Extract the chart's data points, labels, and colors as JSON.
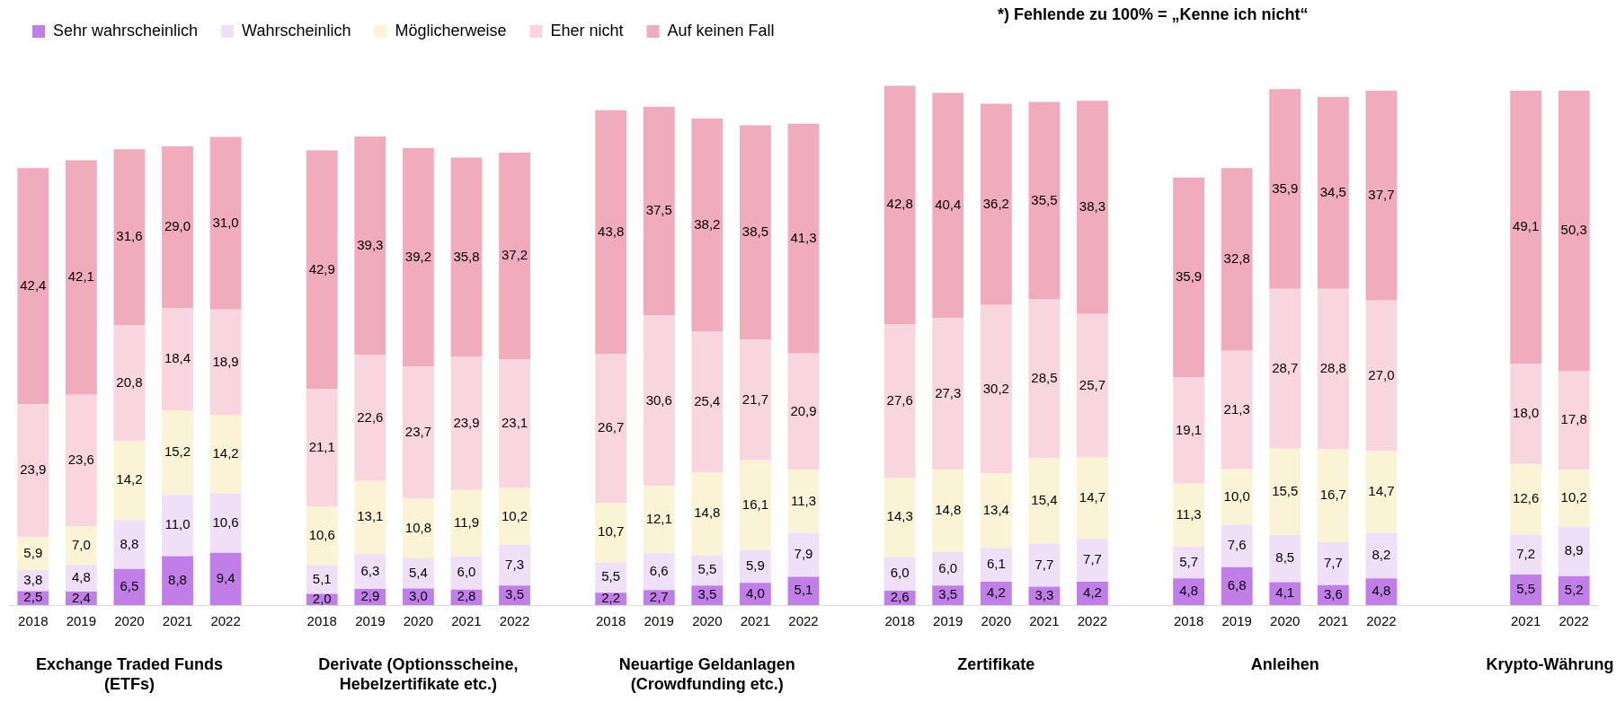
{
  "chart_data": {
    "type": "bar",
    "stacked": true,
    "legend": "top",
    "grid": false,
    "categories": [
      "2018",
      "2019",
      "2020",
      "2021",
      "2022",
      null,
      "2018",
      "2019",
      "2020",
      "2021",
      "2022",
      null,
      "2018",
      "2019",
      "2020",
      "2021",
      "2022",
      null,
      "2018",
      "2019",
      "2020",
      "2021",
      "2022",
      null,
      "2018",
      "2019",
      "2020",
      "2021",
      "2022",
      null,
      null,
      "2021",
      "2022"
    ],
    "series": [
      {
        "name": "Sehr wahrscheinlich",
        "color": "#c27ee8",
        "values": [
          2.5,
          2.4,
          6.5,
          8.8,
          9.4,
          null,
          2.0,
          2.9,
          3.0,
          2.8,
          3.5,
          null,
          2.2,
          2.7,
          3.5,
          4.0,
          5.1,
          null,
          2.6,
          3.5,
          4.2,
          3.3,
          4.2,
          null,
          4.8,
          6.8,
          4.1,
          3.6,
          4.8,
          null,
          null,
          5.5,
          5.2
        ],
        "value_labels": [
          "2,5",
          "2,4",
          "6,5",
          "8,8",
          "9,4",
          null,
          "2,0",
          "2,9",
          "3,0",
          "2,8",
          "3,5",
          null,
          "2,2",
          "2,7",
          "3,5",
          "4,0",
          "5,1",
          null,
          "2,6",
          "3,5",
          "4,2",
          "3,3",
          "4,2",
          null,
          "4,8",
          "6,8",
          "4,1",
          "3,6",
          "4,8",
          null,
          null,
          "5,5",
          "5,2"
        ]
      },
      {
        "name": "Wahrscheinlich",
        "color": "#efe0f8",
        "values": [
          3.8,
          4.8,
          8.8,
          11.0,
          10.6,
          null,
          5.1,
          6.3,
          5.4,
          6.0,
          7.3,
          null,
          5.5,
          6.6,
          5.5,
          5.9,
          7.9,
          null,
          6.0,
          6.0,
          6.1,
          7.7,
          7.7,
          null,
          5.7,
          7.6,
          8.5,
          7.7,
          8.2,
          null,
          null,
          7.2,
          8.9
        ],
        "value_labels": [
          "3,8",
          "4,8",
          "8,8",
          "11,0",
          "10,6",
          null,
          "5,1",
          "6,3",
          "5,4",
          "6,0",
          "7,3",
          null,
          "5,5",
          "6,6",
          "5,5",
          "5,9",
          "7,9",
          null,
          "6,0",
          "6,0",
          "6,1",
          "7,7",
          "7,7",
          null,
          "5,7",
          "7,6",
          "8,5",
          "7,7",
          "8,2",
          null,
          null,
          "7,2",
          "8,9"
        ]
      },
      {
        "name": "Möglicherweise",
        "color": "#fbf3d5",
        "values": [
          5.9,
          7.0,
          14.2,
          15.2,
          14.2,
          null,
          10.6,
          13.1,
          10.8,
          11.9,
          10.2,
          null,
          10.7,
          12.1,
          14.8,
          16.1,
          11.3,
          null,
          14.3,
          14.8,
          13.4,
          15.4,
          14.7,
          null,
          11.3,
          10.0,
          15.5,
          16.7,
          14.7,
          null,
          null,
          12.6,
          10.2
        ],
        "value_labels": [
          "5,9",
          "7,0",
          "14,2",
          "15,2",
          "14,2",
          null,
          "10,6",
          "13,1",
          "10,8",
          "11,9",
          "10,2",
          null,
          "10,7",
          "12,1",
          "14,8",
          "16,1",
          "11,3",
          null,
          "14,3",
          "14,8",
          "13,4",
          "15,4",
          "14,7",
          null,
          "11,3",
          "10,0",
          "15,5",
          "16,7",
          "14,7",
          null,
          null,
          "12,6",
          "10,2"
        ]
      },
      {
        "name": "Eher nicht",
        "color": "#f9d6df",
        "values": [
          23.9,
          23.6,
          20.8,
          18.4,
          18.9,
          null,
          21.1,
          22.6,
          23.7,
          23.9,
          23.1,
          null,
          26.7,
          30.6,
          25.4,
          21.7,
          20.9,
          null,
          27.6,
          27.3,
          30.2,
          28.5,
          25.7,
          null,
          19.1,
          21.3,
          28.7,
          28.8,
          27.0,
          null,
          null,
          18.0,
          17.8
        ],
        "value_labels": [
          "23,9",
          "23,6",
          "20,8",
          "18,4",
          "18,9",
          null,
          "21,1",
          "22,6",
          "23,7",
          "23,9",
          "23,1",
          null,
          "26,7",
          "30,6",
          "25,4",
          "21,7",
          "20,9",
          null,
          "27,6",
          "27,3",
          "30,2",
          "28,5",
          "25,7",
          null,
          "19,1",
          "21,3",
          "28,7",
          "28,8",
          "27,0",
          null,
          null,
          "18,0",
          "17,8"
        ]
      },
      {
        "name": "Auf keinen Fall",
        "color": "#f0abbd",
        "values": [
          42.4,
          42.1,
          31.6,
          29.0,
          31.0,
          null,
          42.9,
          39.3,
          39.2,
          35.8,
          37.2,
          null,
          43.8,
          37.5,
          38.2,
          38.5,
          41.3,
          null,
          42.8,
          40.4,
          36.2,
          35.5,
          38.3,
          null,
          35.9,
          32.8,
          35.9,
          34.5,
          37.7,
          null,
          null,
          49.1,
          50.3
        ],
        "value_labels": [
          "42,4",
          "42,1",
          "31,6",
          "29,0",
          "31,0",
          null,
          "42,9",
          "39,3",
          "39,2",
          "35,8",
          "37,2",
          null,
          "43,8",
          "37,5",
          "38,2",
          "38,5",
          "41,3",
          null,
          "42,8",
          "40,4",
          "36,2",
          "35,5",
          "38,3",
          null,
          "35,9",
          "32,8",
          "35,9",
          "34,5",
          "37,7",
          null,
          null,
          "49,1",
          "50,3"
        ]
      }
    ],
    "annotations": [
      "Exchange Traded Funds (ETFs)",
      "Derivate (Optionsscheine, Hebelzertifikate etc.)",
      "Neuartige Geldanlagen (Crowdfunding etc.)",
      "Zertifikate",
      "Anleihen",
      "Krypto-Währung",
      "*) Fehlende zu 100% = „Kenne ich nicht“"
    ]
  }
}
